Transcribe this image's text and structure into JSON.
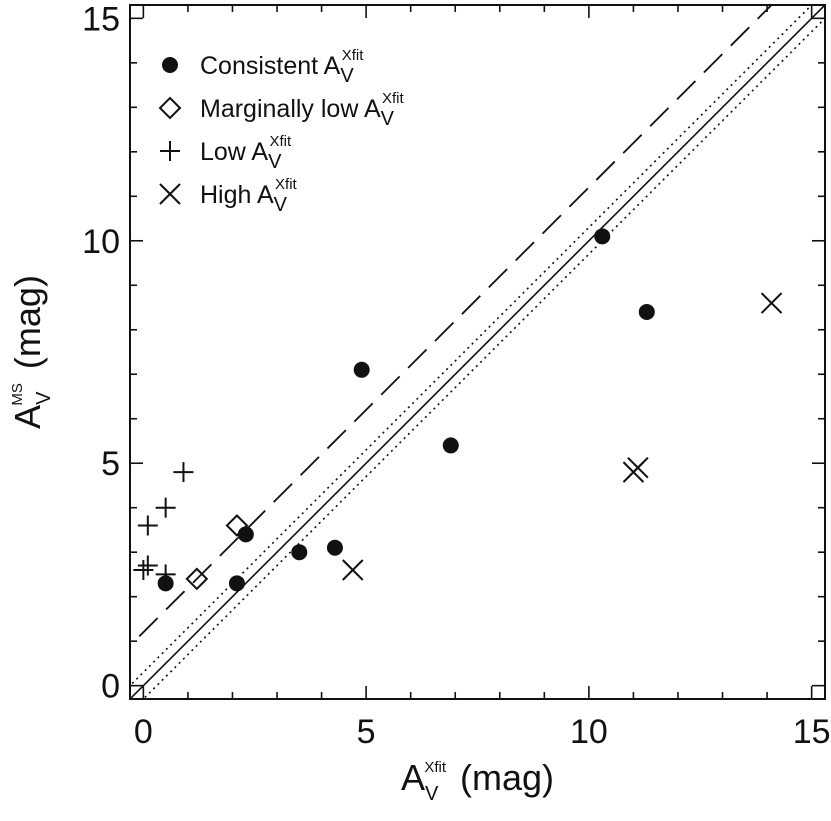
{
  "chart_data": {
    "type": "scatter",
    "xlabel": {
      "base": "A",
      "sub": "V",
      "sup": "Xfit",
      "unit": "(mag)"
    },
    "ylabel": {
      "base": "A",
      "sub": "V",
      "sup": "MS",
      "unit": "(mag)"
    },
    "xlim": [
      -0.3,
      15.3
    ],
    "ylim": [
      -0.3,
      15.3
    ],
    "x_ticks": [
      0,
      5,
      10,
      15
    ],
    "y_ticks": [
      0,
      5,
      10,
      15
    ],
    "x_tick_labels": [
      "0",
      "5",
      "10",
      "15"
    ],
    "y_tick_labels": [
      "0",
      "5",
      "10",
      "15"
    ],
    "legend_position": "top-left",
    "series": [
      {
        "name": "Consistent",
        "name_sub": "V",
        "name_sup": "Xfit",
        "marker": "filled-circle",
        "points": [
          [
            0.5,
            2.3
          ],
          [
            2.1,
            2.3
          ],
          [
            2.3,
            3.4
          ],
          [
            3.5,
            3.0
          ],
          [
            4.3,
            3.1
          ],
          [
            4.9,
            7.1
          ],
          [
            6.9,
            5.4
          ],
          [
            10.3,
            10.1
          ],
          [
            11.3,
            8.4
          ]
        ]
      },
      {
        "name": "Marginally low",
        "name_sub": "V",
        "name_sup": "Xfit",
        "marker": "open-diamond",
        "points": [
          [
            1.2,
            2.4
          ],
          [
            2.1,
            3.6
          ]
        ]
      },
      {
        "name": "Low",
        "name_sub": "V",
        "name_sup": "Xfit",
        "marker": "plus",
        "points": [
          [
            0.0,
            2.6
          ],
          [
            0.1,
            2.7
          ],
          [
            0.1,
            3.6
          ],
          [
            0.5,
            4.0
          ],
          [
            0.9,
            4.8
          ],
          [
            0.5,
            2.5
          ]
        ]
      },
      {
        "name": "High",
        "name_sub": "V",
        "name_sup": "Xfit",
        "marker": "cross",
        "points": [
          [
            4.7,
            2.6
          ],
          [
            11.0,
            4.8
          ],
          [
            11.1,
            4.9
          ],
          [
            14.1,
            8.6
          ]
        ]
      }
    ],
    "reference_lines": [
      {
        "style": "solid",
        "intercept": 0,
        "slope": 1
      },
      {
        "style": "dotted",
        "intercept": 0.3,
        "slope": 1
      },
      {
        "style": "dotted",
        "intercept": -0.3,
        "slope": 1
      },
      {
        "style": "dashed",
        "intercept": 1.2,
        "slope": 1
      }
    ]
  }
}
